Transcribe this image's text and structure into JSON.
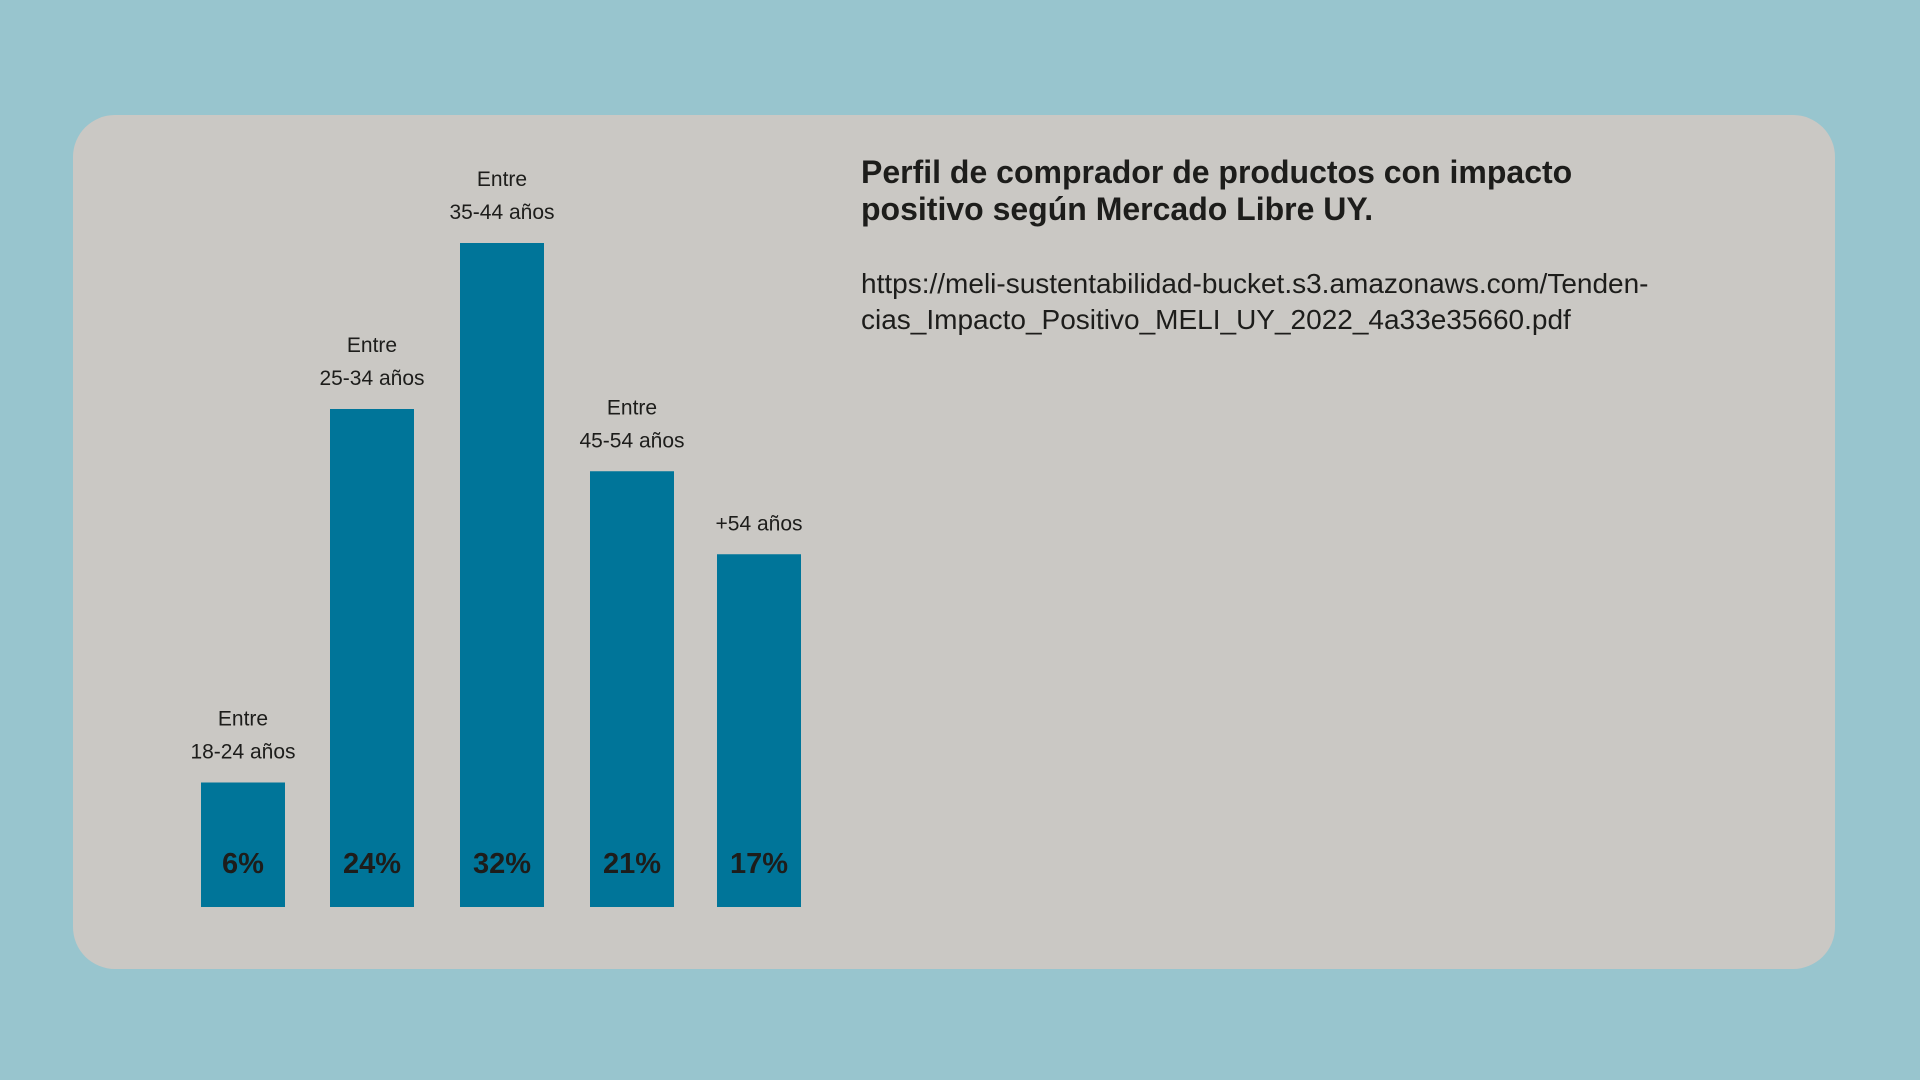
{
  "title_lines": [
    "Perfil de comprador de productos con impacto",
    "positivo según Mercado Libre UY."
  ],
  "source_lines": [
    "https://meli-sustentabilidad-bucket.s3.amazonaws.com/Tenden-",
    "cias_Impacto_Positivo_MELI_UY_2022_4a33e35660.pdf"
  ],
  "colors": {
    "background": "#98c5ce",
    "card": "#cac8c4",
    "bar": "#007599",
    "text": "#1d1d1b"
  },
  "chart_data": {
    "type": "bar",
    "categories": [
      [
        "Entre",
        "18-24 años"
      ],
      [
        "Entre",
        "25-34 años"
      ],
      [
        "Entre",
        "35-44 años"
      ],
      [
        "Entre",
        "45-54 años"
      ],
      [
        "+54 años"
      ]
    ],
    "values": [
      6,
      24,
      32,
      21,
      17
    ],
    "value_labels": [
      "6%",
      "24%",
      "32%",
      "21%",
      "17%"
    ],
    "unit": "%",
    "title": "Perfil de comprador de productos con impacto positivo según Mercado Libre UY.",
    "xlabel": "",
    "ylabel": "",
    "grid": false,
    "legend": "none"
  }
}
